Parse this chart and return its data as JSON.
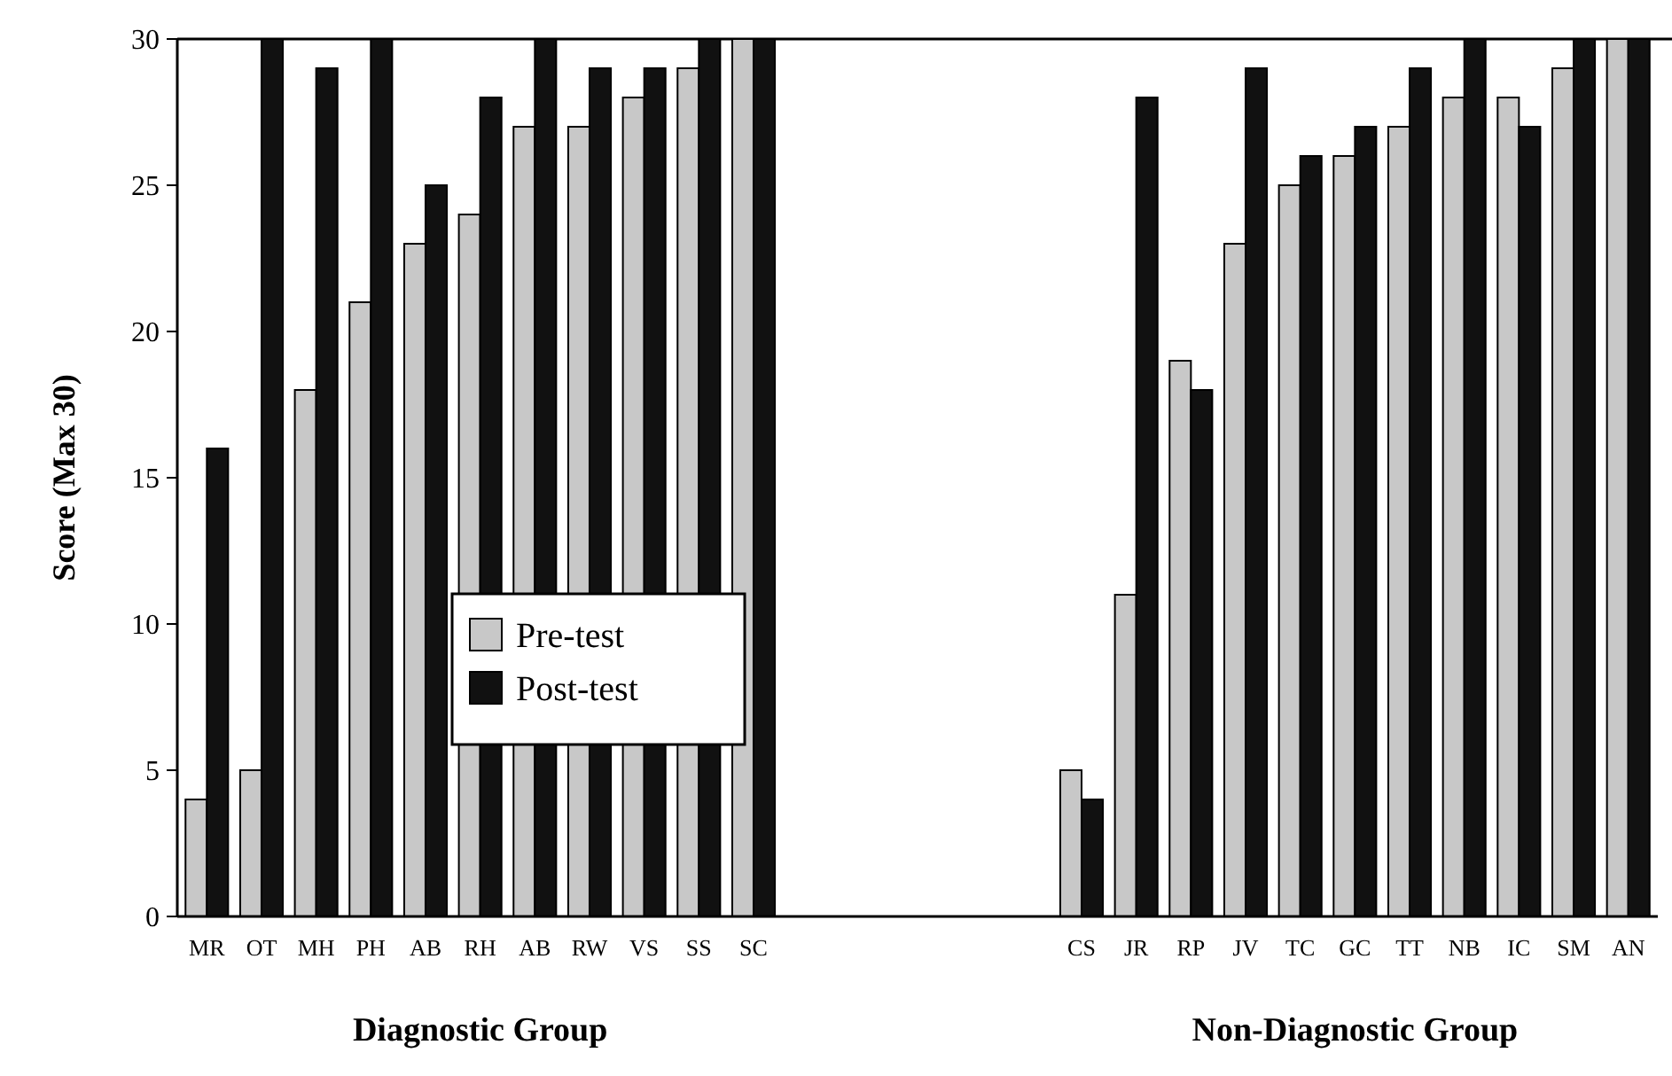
{
  "chart_data": {
    "type": "bar",
    "ylabel": "Score (Max 30)",
    "categories": [
      "MR",
      "OT",
      "MH",
      "PH",
      "AB",
      "RH",
      "AB",
      "RW",
      "VS",
      "SS",
      "SC",
      null,
      null,
      null,
      null,
      null,
      "CS",
      "JR",
      "RP",
      "JV",
      "TC",
      "GC",
      "TT",
      "NB",
      "IC",
      "SM",
      "AN"
    ],
    "series": [
      {
        "name": "Pre-test",
        "color": "#c8c8c8",
        "values": [
          4,
          5,
          18,
          21,
          23,
          24,
          27,
          27,
          28,
          29,
          30,
          null,
          null,
          null,
          null,
          null,
          5,
          11,
          19,
          23,
          25,
          26,
          27,
          28,
          28,
          29,
          30
        ]
      },
      {
        "name": "Post-test",
        "color": "#111111",
        "values": [
          16,
          30,
          29,
          30,
          25,
          28,
          30,
          29,
          29,
          30,
          30,
          null,
          null,
          null,
          null,
          null,
          4,
          28,
          18,
          29,
          26,
          27,
          29,
          30,
          27,
          30,
          30
        ]
      }
    ],
    "ylim": [
      0,
      30
    ],
    "yticks": [
      0,
      5,
      10,
      15,
      20,
      25,
      30
    ],
    "legend": "center left",
    "annotations": [
      "Diagnostic Group",
      "Non-Diagnostic Group"
    ]
  }
}
